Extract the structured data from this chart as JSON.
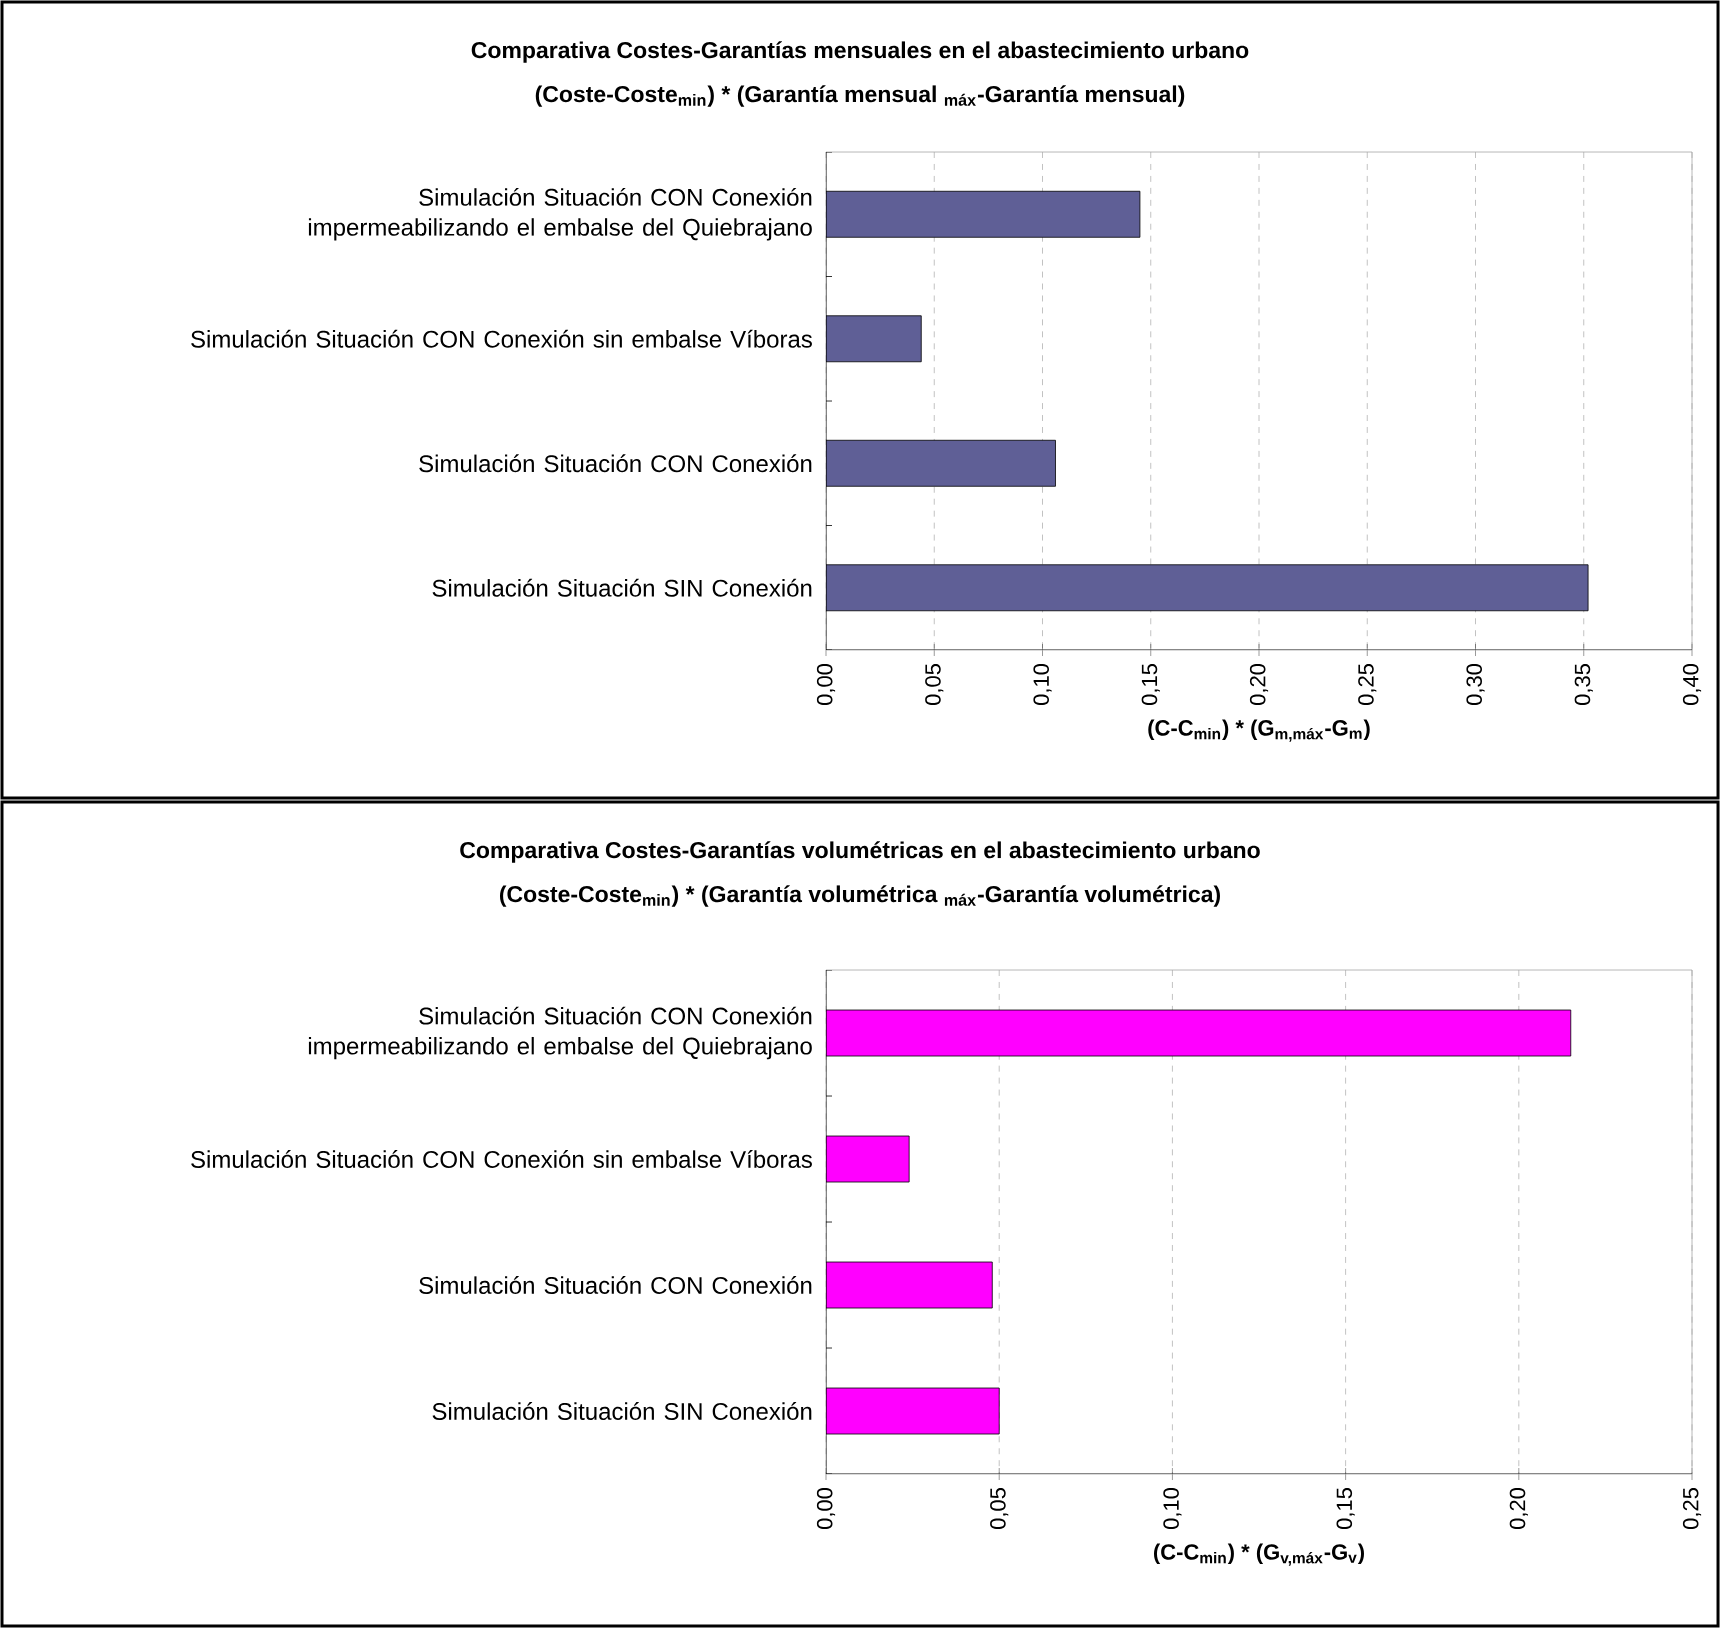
{
  "chart_data": [
    {
      "type": "bar",
      "orientation": "horizontal",
      "title": "Comparativa Costes-Garantías mensuales en el abastecimiento urbano",
      "subtitle": "(Coste-Coste$_{min}$) * (Garantía mensual $_{máx}$-Garantía mensual)",
      "xlabel": "(C-C$_{min}$) * (G$_{m,máx}$-G$_{m}$)",
      "categories": [
        "Simulación Situación CON Conexión impermeabilizando el embalse del Quiebrajano",
        "Simulación Situación CON Conexión sin embalse Víboras",
        "Simulación Situación CON Conexión",
        "Simulación Situación SIN Conexión"
      ],
      "values": [
        0.145,
        0.044,
        0.106,
        0.352
      ],
      "color": "#5f5f96",
      "xlim": [
        0,
        0.4
      ],
      "xticks": [
        {
          "value": 0,
          "label": "0,00"
        },
        {
          "value": 0.05,
          "label": "0,05"
        },
        {
          "value": 0.1,
          "label": "0,10"
        },
        {
          "value": 0.15,
          "label": "0,15"
        },
        {
          "value": 0.2,
          "label": "0,20"
        },
        {
          "value": 0.25,
          "label": "0,25"
        },
        {
          "value": 0.3,
          "label": "0,30"
        },
        {
          "value": 0.35,
          "label": "0,35"
        },
        {
          "value": 0.4,
          "label": "0,40"
        }
      ],
      "grid": "x"
    },
    {
      "type": "bar",
      "orientation": "horizontal",
      "title": "Comparativa Costes-Garantías volumétricas en el abastecimiento urbano",
      "subtitle": "(Coste-Coste$_{min}$) * (Garantía volumétrica $_{máx}$-Garantía volumétrica)",
      "xlabel": "(C-C$_{min}$) * (G$_{v,máx}$-G$_{v}$)",
      "categories": [
        "Simulación Situación CON Conexión impermeabilizando el embalse del Quiebrajano",
        "Simulación Situación CON Conexión sin embalse Víboras",
        "Simulación Situación CON Conexión",
        "Simulación Situación SIN Conexión"
      ],
      "values": [
        0.215,
        0.024,
        0.048,
        0.05
      ],
      "color": "#ff00ff",
      "xlim": [
        0,
        0.25
      ],
      "xticks": [
        {
          "value": 0,
          "label": "0,00"
        },
        {
          "value": 0.05,
          "label": "0,05"
        },
        {
          "value": 0.1,
          "label": "0,10"
        },
        {
          "value": 0.15,
          "label": "0,15"
        },
        {
          "value": 0.2,
          "label": "0,20"
        },
        {
          "value": 0.25,
          "label": "0,25"
        }
      ],
      "grid": "x"
    }
  ]
}
